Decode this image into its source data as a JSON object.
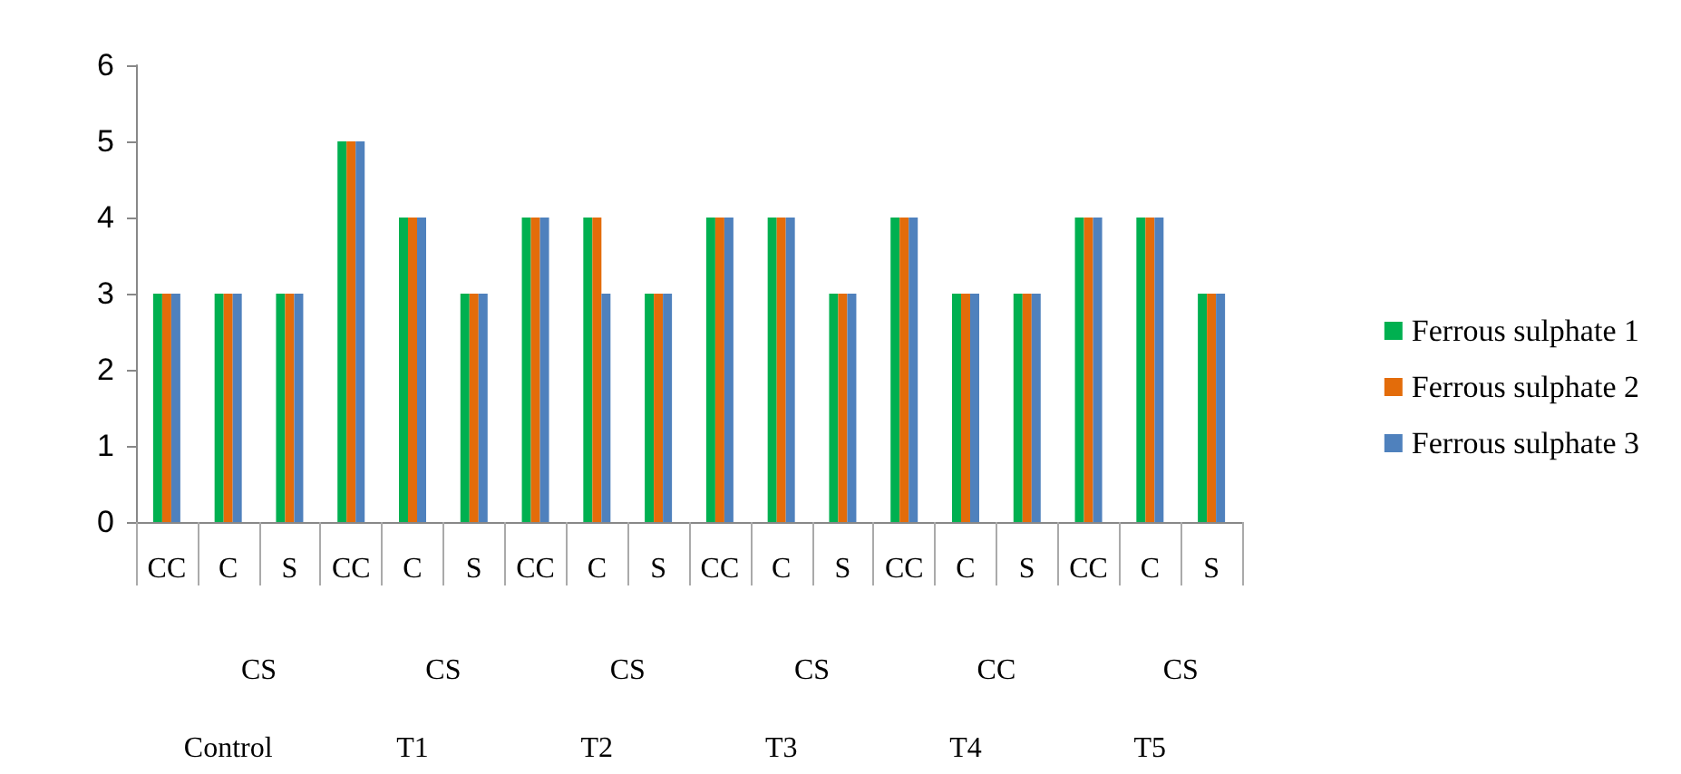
{
  "chart_data": {
    "type": "bar",
    "categories": [
      "CC",
      "C",
      "S",
      "CC",
      "C",
      "S",
      "CC",
      "C",
      "S",
      "CC",
      "C",
      "S",
      "CC",
      "C",
      "S",
      "CC",
      "C",
      "S"
    ],
    "series": [
      {
        "name": "Ferrous sulphate 1",
        "color": "#00b050",
        "values": [
          3,
          3,
          3,
          5,
          4,
          3,
          4,
          4,
          3,
          4,
          4,
          3,
          4,
          3,
          3,
          4,
          4,
          3
        ]
      },
      {
        "name": "Ferrous sulphate 2",
        "color": "#e36c0a",
        "values": [
          3,
          3,
          3,
          5,
          4,
          3,
          4,
          4,
          3,
          4,
          4,
          3,
          4,
          3,
          3,
          4,
          4,
          3
        ]
      },
      {
        "name": "Ferrous sulphate 3",
        "color": "#4f81bd",
        "values": [
          3,
          3,
          3,
          5,
          4,
          3,
          4,
          3,
          3,
          4,
          4,
          3,
          4,
          3,
          3,
          4,
          4,
          3
        ]
      }
    ],
    "annotations": [
      "CS",
      "CS",
      "CS",
      "CS",
      "CC",
      "CS",
      "Control",
      "T1",
      "T2",
      "T3",
      "T4",
      "T5"
    ],
    "ylim": [
      0,
      6
    ],
    "yticks": [
      0,
      1,
      2,
      3,
      4,
      5,
      6
    ],
    "grid": false,
    "legend": "right"
  }
}
